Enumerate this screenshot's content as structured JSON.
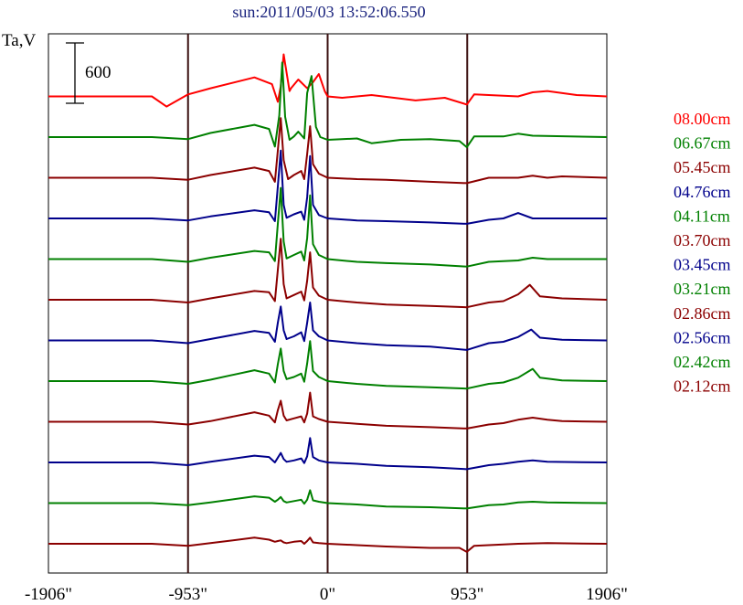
{
  "chart_data": {
    "type": "line",
    "title": "sun:2011/05/03 13:52:06.550",
    "ylabel": "Ta,V",
    "xlabel": "",
    "x_unit": "arcsec",
    "xlim": [
      -1906,
      1906
    ],
    "x_ticks": [
      -1906,
      -953,
      0,
      953,
      1906
    ],
    "x_tick_labels": [
      "-1906\"",
      "-953\"",
      "0\"",
      "953\"",
      "1906\""
    ],
    "vertical_lines_at": [
      -953,
      0,
      953
    ],
    "scale_bar": {
      "label": "600",
      "value": 600
    },
    "trace_offset_spacing": 600,
    "series": [
      {
        "name": "08.00cm",
        "color": "#ff0000",
        "baseline_offset": 6600,
        "x": [
          -1906,
          -1200,
          -1100,
          -953,
          -800,
          -500,
          -380,
          -340,
          -320,
          -300,
          -260,
          -250,
          -200,
          -140,
          -100,
          -60,
          -20,
          0,
          100,
          300,
          600,
          800,
          950,
          1000,
          1200,
          1300,
          1400,
          1500,
          1700,
          1906
        ],
        "y": [
          0,
          0,
          -150,
          30,
          120,
          280,
          180,
          -80,
          150,
          620,
          80,
          120,
          250,
          120,
          210,
          330,
          80,
          0,
          -20,
          20,
          -60,
          -20,
          -120,
          30,
          10,
          0,
          60,
          80,
          20,
          0
        ]
      },
      {
        "name": "06.67cm",
        "color": "#008000",
        "baseline_offset": 6000,
        "x": [
          -1906,
          -1200,
          -953,
          -800,
          -500,
          -400,
          -360,
          -330,
          -310,
          -290,
          -260,
          -230,
          -200,
          -160,
          -140,
          -110,
          -80,
          -50,
          0,
          200,
          300,
          500,
          700,
          900,
          950,
          1000,
          1200,
          1300,
          1400,
          1906
        ],
        "y": [
          0,
          0,
          -30,
          60,
          180,
          120,
          -140,
          320,
          1100,
          300,
          -40,
          10,
          80,
          -20,
          650,
          900,
          150,
          0,
          -40,
          -20,
          -90,
          -40,
          -30,
          -60,
          -150,
          10,
          10,
          50,
          20,
          0
        ]
      },
      {
        "name": "05.45cm",
        "color": "#8b0000",
        "baseline_offset": 5400,
        "x": [
          -1906,
          -1200,
          -953,
          -800,
          -500,
          -400,
          -360,
          -340,
          -320,
          -300,
          -270,
          -230,
          -180,
          -160,
          -140,
          -120,
          -100,
          -60,
          0,
          200,
          400,
          700,
          950,
          1100,
          1300,
          1400,
          1500,
          1600,
          1906
        ],
        "y": [
          0,
          0,
          -30,
          40,
          150,
          100,
          -60,
          400,
          880,
          260,
          -20,
          40,
          100,
          -20,
          350,
          760,
          200,
          60,
          0,
          -20,
          -30,
          -60,
          -80,
          0,
          0,
          30,
          0,
          20,
          0
        ]
      },
      {
        "name": "04.76cm",
        "color": "#00008b",
        "baseline_offset": 4800,
        "x": [
          -1906,
          -1200,
          -953,
          -800,
          -500,
          -400,
          -360,
          -340,
          -320,
          -300,
          -280,
          -230,
          -180,
          -160,
          -140,
          -120,
          -100,
          -60,
          0,
          200,
          400,
          700,
          950,
          1100,
          1200,
          1300,
          1400,
          1906
        ],
        "y": [
          0,
          0,
          -30,
          30,
          120,
          90,
          -40,
          470,
          1000,
          200,
          10,
          60,
          100,
          -20,
          310,
          920,
          200,
          50,
          0,
          -30,
          -40,
          -60,
          -80,
          -20,
          0,
          80,
          0,
          0
        ]
      },
      {
        "name": "04.11cm",
        "color": "#008000",
        "baseline_offset": 4200,
        "x": [
          -1906,
          -1200,
          -953,
          -800,
          -500,
          -400,
          -360,
          -340,
          -320,
          -300,
          -280,
          -230,
          -180,
          -160,
          -140,
          -120,
          -100,
          -60,
          0,
          200,
          400,
          700,
          950,
          1100,
          1300,
          1400,
          1500,
          1906
        ],
        "y": [
          0,
          0,
          -40,
          20,
          120,
          100,
          -30,
          520,
          1050,
          260,
          10,
          60,
          110,
          -20,
          310,
          940,
          220,
          60,
          0,
          -40,
          -60,
          -80,
          -110,
          -40,
          -20,
          20,
          0,
          0
        ]
      },
      {
        "name": "03.70cm",
        "color": "#8b0000",
        "baseline_offset": 3600,
        "x": [
          -1906,
          -1200,
          -953,
          -800,
          -500,
          -400,
          -360,
          -340,
          -320,
          -300,
          -280,
          -230,
          -180,
          -160,
          -140,
          -120,
          -100,
          -60,
          0,
          200,
          400,
          700,
          950,
          1100,
          1200,
          1300,
          1380,
          1450,
          1600,
          1906
        ],
        "y": [
          0,
          0,
          -40,
          20,
          130,
          110,
          -20,
          440,
          900,
          230,
          20,
          70,
          120,
          -10,
          280,
          700,
          180,
          60,
          0,
          -40,
          -70,
          -90,
          -110,
          -40,
          -20,
          80,
          220,
          50,
          20,
          0
        ]
      },
      {
        "name": "03.45cm",
        "color": "#00008b",
        "baseline_offset": 3000,
        "x": [
          -1906,
          -1200,
          -953,
          -800,
          -500,
          -400,
          -360,
          -340,
          -320,
          -300,
          -280,
          -230,
          -180,
          -160,
          -140,
          -120,
          -100,
          -60,
          0,
          200,
          400,
          700,
          950,
          1100,
          1200,
          1300,
          1390,
          1450,
          1600,
          1906
        ],
        "y": [
          0,
          0,
          -40,
          20,
          140,
          110,
          -20,
          260,
          500,
          150,
          20,
          60,
          120,
          -10,
          260,
          560,
          150,
          60,
          0,
          -40,
          -70,
          -90,
          -140,
          -40,
          -20,
          50,
          160,
          40,
          10,
          0
        ]
      },
      {
        "name": "03.21cm",
        "color": "#008000",
        "baseline_offset": 2400,
        "x": [
          -1906,
          -1200,
          -953,
          -800,
          -500,
          -400,
          -360,
          -340,
          -320,
          -300,
          -280,
          -230,
          -180,
          -160,
          -140,
          -120,
          -100,
          -60,
          0,
          200,
          400,
          700,
          950,
          1100,
          1200,
          1300,
          1400,
          1450,
          1600,
          1906
        ],
        "y": [
          0,
          0,
          -40,
          20,
          160,
          110,
          -20,
          250,
          480,
          150,
          30,
          60,
          110,
          -10,
          260,
          590,
          150,
          60,
          0,
          -40,
          -70,
          -90,
          -110,
          -40,
          -20,
          50,
          180,
          50,
          10,
          0
        ]
      },
      {
        "name": "02.86cm",
        "color": "#8b0000",
        "baseline_offset": 1800,
        "x": [
          -1906,
          -1200,
          -953,
          -800,
          -500,
          -400,
          -360,
          -340,
          -320,
          -300,
          -280,
          -230,
          -180,
          -160,
          -140,
          -120,
          -100,
          -60,
          0,
          200,
          400,
          700,
          950,
          1100,
          1200,
          1300,
          1400,
          1500,
          1600,
          1906
        ],
        "y": [
          0,
          0,
          -40,
          10,
          140,
          90,
          -10,
          170,
          310,
          90,
          20,
          50,
          80,
          -10,
          120,
          430,
          80,
          40,
          0,
          -30,
          -60,
          -80,
          -100,
          -40,
          -20,
          30,
          60,
          30,
          10,
          0
        ]
      },
      {
        "name": "02.56cm",
        "color": "#00008b",
        "baseline_offset": 1200,
        "x": [
          -1906,
          -1200,
          -953,
          -800,
          -500,
          -400,
          -360,
          -340,
          -320,
          -300,
          -280,
          -230,
          -180,
          -160,
          -140,
          -120,
          -100,
          -60,
          0,
          200,
          400,
          700,
          950,
          1100,
          1200,
          1300,
          1400,
          1500,
          1906
        ],
        "y": [
          0,
          0,
          -40,
          10,
          100,
          80,
          0,
          70,
          140,
          50,
          10,
          30,
          60,
          -10,
          90,
          360,
          80,
          30,
          0,
          -20,
          -50,
          -70,
          -100,
          -40,
          -20,
          10,
          30,
          10,
          0
        ]
      },
      {
        "name": "02.42cm",
        "color": "#008000",
        "baseline_offset": 600,
        "x": [
          -1906,
          -1200,
          -953,
          -800,
          -500,
          -400,
          -360,
          -340,
          -320,
          -300,
          -280,
          -230,
          -180,
          -160,
          -140,
          -120,
          -100,
          -60,
          0,
          200,
          400,
          700,
          950,
          1100,
          1200,
          1300,
          1400,
          1500,
          1906
        ],
        "y": [
          0,
          0,
          -30,
          10,
          100,
          80,
          20,
          50,
          90,
          30,
          10,
          30,
          50,
          -10,
          50,
          190,
          40,
          20,
          0,
          -20,
          -50,
          -60,
          -80,
          -30,
          -20,
          10,
          20,
          10,
          0
        ]
      },
      {
        "name": "02.12cm",
        "color": "#8b0000",
        "baseline_offset": 0,
        "x": [
          -1906,
          -1200,
          -953,
          -800,
          -500,
          -400,
          -360,
          -340,
          -320,
          -300,
          -280,
          -230,
          -180,
          -160,
          -140,
          -120,
          -100,
          -60,
          0,
          200,
          400,
          700,
          900,
          950,
          1000,
          1100,
          1200,
          1300,
          1500,
          1906
        ],
        "y": [
          0,
          0,
          -30,
          10,
          90,
          60,
          30,
          40,
          50,
          20,
          10,
          30,
          40,
          0,
          40,
          90,
          20,
          10,
          0,
          -20,
          -40,
          -60,
          -60,
          -120,
          -30,
          -20,
          -10,
          0,
          10,
          0
        ]
      }
    ]
  }
}
